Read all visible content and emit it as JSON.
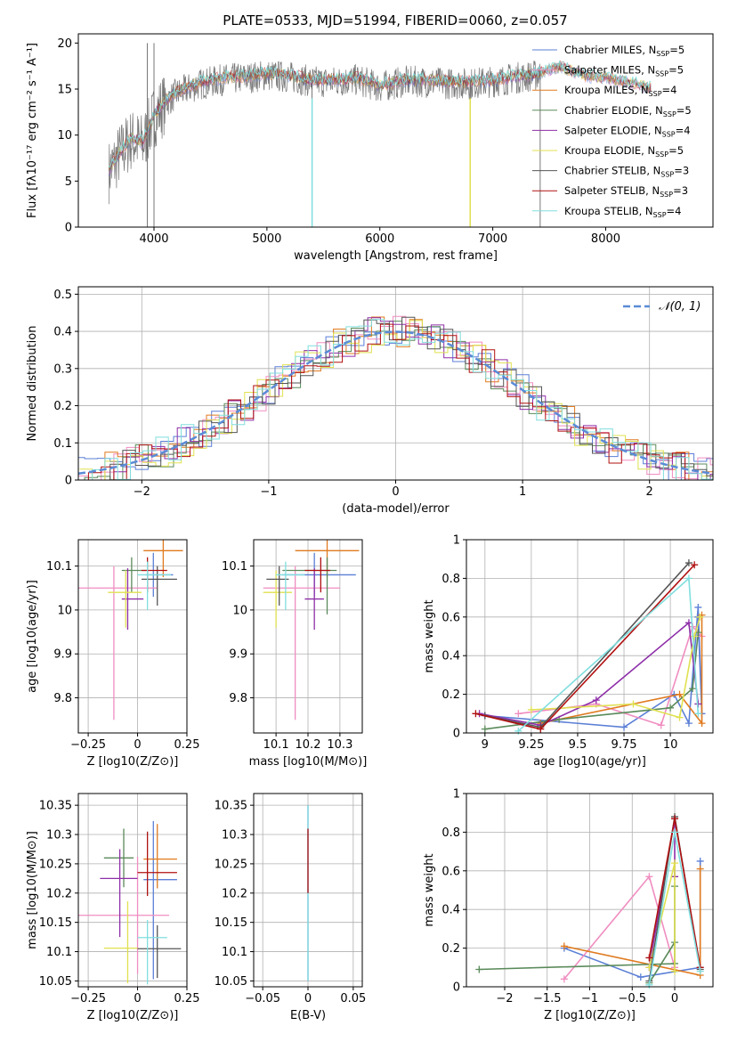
{
  "figure_title": "PLATE=0533, MJD=51994, FIBERID=0060, z=0.057",
  "colors": {
    "Chabrier MILES": "#5b7fd6",
    "Salpeter MILES": "#f08dc0",
    "Kroupa MILES": "#e07a1f",
    "Chabrier ELODIE": "#5a8a5a",
    "Salpeter ELODIE": "#8e2ea8",
    "Kroupa ELODIE": "#e0e050",
    "Chabrier STELIB": "#555555",
    "Salpeter STELIB": "#b01010",
    "Kroupa STELIB": "#80dede"
  },
  "chart_data": [
    {
      "id": "spectrum",
      "type": "line",
      "title": "PLATE=0533, MJD=51994, FIBERID=0060, z=0.057",
      "xlabel": "wavelength [Angstrom, rest frame]",
      "ylabel": "Flux [fλ10⁻¹⁷ erg cm⁻² s⁻¹ A⁻¹]",
      "xlim": [
        3330,
        8950
      ],
      "ylim": [
        0,
        21
      ],
      "xticks": [
        4000,
        5000,
        6000,
        7000,
        8000
      ],
      "yticks": [
        0,
        5,
        10,
        15,
        20
      ],
      "grid": false,
      "legend_position": "right",
      "legend": [
        "Chabrier MILES, NSSP=5",
        "Salpeter MILES, NSSP=5",
        "Kroupa MILES, NSSP=4",
        "Chabrier ELODIE, NSSP=5",
        "Salpeter ELODIE, NSSP=4",
        "Kroupa ELODIE, NSSP=5",
        "Chabrier STELIB, NSSP=3",
        "Salpeter STELIB, NSSP=3",
        "Kroupa STELIB, NSSP=4"
      ],
      "data_trend": {
        "wavelength": [
          3600,
          3700,
          3800,
          3900,
          4000,
          4100,
          4200,
          4400,
          4600,
          4800,
          5000,
          5200,
          5400,
          5600,
          5800,
          6000,
          6200,
          6400,
          6600,
          6800,
          7000,
          7200,
          7400,
          7600,
          7800,
          8000,
          8200,
          8400
        ],
        "flux": [
          6.0,
          8.0,
          9.5,
          9.0,
          12.0,
          13.5,
          14.5,
          15.5,
          16.0,
          16.2,
          16.5,
          16.3,
          15.8,
          15.8,
          16.0,
          15.2,
          15.8,
          15.8,
          15.6,
          15.6,
          15.8,
          16.2,
          16.5,
          17.2,
          16.3,
          16.0,
          15.5,
          15.0
        ]
      }
    },
    {
      "id": "residuals",
      "type": "histogram",
      "xlabel": "(data-model)/error",
      "ylabel": "Normed distribution",
      "xlim": [
        -2.5,
        2.5
      ],
      "ylim": [
        0,
        0.52
      ],
      "xticks": [
        -2,
        -1,
        0,
        1,
        2
      ],
      "yticks": [
        0.0,
        0.1,
        0.2,
        0.3,
        0.4,
        0.5
      ],
      "grid": true,
      "legend": [
        "N(0,1)"
      ],
      "legend_position": "top-right"
    },
    {
      "id": "age_vs_z",
      "type": "errorbar",
      "xlabel": "Z [log10(Z/Z⊙)]",
      "ylabel": "age [log10(age/yr)]",
      "xlim": [
        -0.3,
        0.25
      ],
      "ylim": [
        9.72,
        10.16
      ],
      "xticks": [
        -0.25,
        0.0,
        0.25
      ],
      "yticks": [
        9.8,
        9.9,
        10.0,
        10.1
      ],
      "grid": true,
      "points": [
        {
          "model": "Chabrier MILES",
          "x": 0.08,
          "y": 10.08,
          "xerr": [
            0.04,
            0.1
          ],
          "yerr": [
            0.05,
            0.05
          ]
        },
        {
          "model": "Salpeter MILES",
          "x": -0.12,
          "y": 10.05,
          "xerr": [
            0.23,
            0.22
          ],
          "yerr": [
            0.3,
            0.05
          ]
        },
        {
          "model": "Kroupa MILES",
          "x": 0.13,
          "y": 10.135,
          "xerr": [
            0.1,
            0.1
          ],
          "yerr": [
            0.06,
            0.03
          ]
        },
        {
          "model": "Chabrier ELODIE",
          "x": -0.03,
          "y": 10.09,
          "xerr": [
            0.05,
            0.08
          ],
          "yerr": [
            0.05,
            0.03
          ]
        },
        {
          "model": "Salpeter ELODIE",
          "x": -0.05,
          "y": 10.025,
          "xerr": [
            0.03,
            0.08
          ],
          "yerr": [
            0.07,
            0.07
          ]
        },
        {
          "model": "Kroupa ELODIE",
          "x": -0.06,
          "y": 10.04,
          "xerr": [
            0.09,
            0.08
          ],
          "yerr": [
            0.08,
            0.05
          ]
        },
        {
          "model": "Chabrier STELIB",
          "x": 0.1,
          "y": 10.07,
          "xerr": [
            0.08,
            0.1
          ],
          "yerr": [
            0.06,
            0.03
          ]
        },
        {
          "model": "Salpeter STELIB",
          "x": 0.05,
          "y": 10.09,
          "xerr": [
            0.03,
            0.1
          ],
          "yerr": [
            0.05,
            0.03
          ]
        },
        {
          "model": "Kroupa STELIB",
          "x": 0.05,
          "y": 10.08,
          "xerr": [
            0.05,
            0.12
          ],
          "yerr": [
            0.08,
            0.03
          ]
        }
      ]
    },
    {
      "id": "age_vs_mass",
      "type": "errorbar",
      "xlabel": "mass [log10(M/M⊙)]",
      "ylabel": "",
      "xlim": [
        10.03,
        10.37
      ],
      "ylim": [
        9.72,
        10.16
      ],
      "xticks": [
        10.1,
        10.2,
        10.3
      ],
      "yticks": [
        9.8,
        9.9,
        10.0,
        10.1
      ],
      "grid": true,
      "points": [
        {
          "model": "Chabrier MILES",
          "x": 10.22,
          "y": 10.08,
          "xerr": [
            0.1,
            0.13
          ],
          "yerr": [
            0.05,
            0.05
          ]
        },
        {
          "model": "Salpeter MILES",
          "x": 10.16,
          "y": 10.05,
          "xerr": [
            0.1,
            0.14
          ],
          "yerr": [
            0.3,
            0.05
          ]
        },
        {
          "model": "Kroupa MILES",
          "x": 10.26,
          "y": 10.135,
          "xerr": [
            0.1,
            0.1
          ],
          "yerr": [
            0.06,
            0.03
          ]
        },
        {
          "model": "Chabrier ELODIE",
          "x": 10.26,
          "y": 10.09,
          "xerr": [
            0.14,
            0.03
          ],
          "yerr": [
            0.1,
            0.03
          ]
        },
        {
          "model": "Salpeter ELODIE",
          "x": 10.22,
          "y": 10.025,
          "xerr": [
            0.03,
            0.03
          ],
          "yerr": [
            0.07,
            0.07
          ]
        },
        {
          "model": "Kroupa ELODIE",
          "x": 10.1,
          "y": 10.04,
          "xerr": [
            0.04,
            0.05
          ],
          "yerr": [
            0.08,
            0.05
          ]
        },
        {
          "model": "Chabrier STELIB",
          "x": 10.11,
          "y": 10.07,
          "xerr": [
            0.04,
            0.03
          ],
          "yerr": [
            0.06,
            0.03
          ]
        },
        {
          "model": "Salpeter STELIB",
          "x": 10.24,
          "y": 10.09,
          "xerr": [
            0.05,
            0.03
          ],
          "yerr": [
            0.05,
            0.03
          ]
        },
        {
          "model": "Kroupa STELIB",
          "x": 10.13,
          "y": 10.08,
          "xerr": [
            0.03,
            0.06
          ],
          "yerr": [
            0.08,
            0.03
          ]
        }
      ]
    },
    {
      "id": "weight_vs_age",
      "type": "line",
      "xlabel": "age [log10(age/yr)]",
      "ylabel": "mass weight",
      "xlim": [
        8.9,
        10.23
      ],
      "ylim": [
        0,
        1
      ],
      "xticks": [
        9.0,
        9.25,
        9.5,
        9.75,
        10.0
      ],
      "yticks": [
        0.0,
        0.2,
        0.4,
        0.6,
        0.8,
        1.0
      ],
      "grid": true,
      "series": [
        {
          "model": "Chabrier MILES",
          "x": [
            9.0,
            9.75,
            10.02,
            10.1,
            10.15,
            10.17,
            10.15
          ],
          "y": [
            0.09,
            0.03,
            0.2,
            0.05,
            0.65,
            0.1,
            0.6
          ]
        },
        {
          "model": "Salpeter MILES",
          "x": [
            9.18,
            9.6,
            9.95,
            10.12,
            10.17
          ],
          "y": [
            0.1,
            0.15,
            0.04,
            0.55,
            0.5
          ]
        },
        {
          "model": "Kroupa MILES",
          "x": [
            9.3,
            10.05,
            10.17,
            10.17
          ],
          "y": [
            0.05,
            0.2,
            0.05,
            0.61
          ]
        },
        {
          "model": "Chabrier ELODIE",
          "x": [
            9.0,
            9.4,
            10.0,
            10.12,
            10.15
          ],
          "y": [
            0.02,
            0.07,
            0.13,
            0.23,
            0.52
          ]
        },
        {
          "model": "Salpeter ELODIE",
          "x": [
            8.97,
            9.3,
            9.6,
            10.1,
            10.15
          ],
          "y": [
            0.1,
            0.04,
            0.17,
            0.57,
            0.15
          ]
        },
        {
          "model": "Kroupa ELODIE",
          "x": [
            9.25,
            9.8,
            10.05,
            10.13,
            10.16
          ],
          "y": [
            0.12,
            0.15,
            0.08,
            0.5,
            0.6
          ]
        },
        {
          "model": "Chabrier STELIB",
          "x": [
            9.0,
            9.3,
            10.1
          ],
          "y": [
            0.09,
            0.03,
            0.88
          ]
        },
        {
          "model": "Salpeter STELIB",
          "x": [
            8.95,
            9.3,
            10.13
          ],
          "y": [
            0.1,
            0.02,
            0.87
          ]
        },
        {
          "model": "Kroupa STELIB",
          "x": [
            9.18,
            10.1,
            10.15
          ],
          "y": [
            0.01,
            0.8,
            0.1
          ]
        }
      ]
    },
    {
      "id": "mass_vs_z",
      "type": "errorbar",
      "xlabel": "Z [log10(Z/Z⊙)]",
      "ylabel": "mass [log10(M/M⊙)]",
      "xlim": [
        -0.3,
        0.25
      ],
      "ylim": [
        10.04,
        10.37
      ],
      "xticks": [
        -0.25,
        0.0,
        0.25
      ],
      "yticks": [
        10.05,
        10.1,
        10.15,
        10.2,
        10.25,
        10.3,
        10.35
      ],
      "grid": true,
      "points": [
        {
          "model": "Chabrier MILES",
          "x": 0.08,
          "y": 10.223,
          "xerr": [
            0.05,
            0.12
          ],
          "yerr": [
            0.17,
            0.1
          ]
        },
        {
          "model": "Salpeter MILES",
          "x": 0.0,
          "y": 10.162,
          "xerr": [
            0.3,
            0.16
          ],
          "yerr": [
            0.1,
            0.1
          ]
        },
        {
          "model": "Kroupa MILES",
          "x": 0.1,
          "y": 10.258,
          "xerr": [
            0.07,
            0.1
          ],
          "yerr": [
            0.05,
            0.06
          ]
        },
        {
          "model": "Chabrier ELODIE",
          "x": -0.07,
          "y": 10.26,
          "xerr": [
            0.1,
            0.05
          ],
          "yerr": [
            0.05,
            0.05
          ]
        },
        {
          "model": "Salpeter ELODIE",
          "x": -0.09,
          "y": 10.225,
          "xerr": [
            0.1,
            0.09
          ],
          "yerr": [
            0.1,
            0.05
          ]
        },
        {
          "model": "Kroupa ELODIE",
          "x": -0.05,
          "y": 10.106,
          "xerr": [
            0.12,
            0.05
          ],
          "yerr": [
            0.06,
            0.08
          ]
        },
        {
          "model": "Chabrier STELIB",
          "x": 0.1,
          "y": 10.105,
          "xerr": [
            0.1,
            0.12
          ],
          "yerr": [
            0.05,
            0.04
          ]
        },
        {
          "model": "Salpeter STELIB",
          "x": 0.05,
          "y": 10.235,
          "xerr": [
            0.05,
            0.15
          ],
          "yerr": [
            0.04,
            0.07
          ]
        },
        {
          "model": "Kroupa STELIB",
          "x": 0.05,
          "y": 10.124,
          "xerr": [
            0.05,
            0.1
          ],
          "yerr": [
            0.08,
            0.03
          ]
        }
      ]
    },
    {
      "id": "mass_vs_ebv",
      "type": "errorbar",
      "xlabel": "E(B-V)",
      "ylabel": "",
      "xlim": [
        -0.06,
        0.06
      ],
      "ylim": [
        10.04,
        10.37
      ],
      "xticks": [
        -0.05,
        0.0,
        0.05
      ],
      "yticks": [
        10.05,
        10.1,
        10.15,
        10.2,
        10.25,
        10.3,
        10.35
      ],
      "grid": true,
      "points": [
        {
          "model": "Chabrier MILES",
          "x": 0.0,
          "y": 10.2,
          "xerr": [
            0,
            0
          ],
          "yerr": [
            0.15,
            0.15
          ]
        },
        {
          "model": "Kroupa STELIB",
          "x": 0.0,
          "y": 10.22,
          "xerr": [
            0,
            0
          ],
          "yerr": [
            0.17,
            0.13
          ]
        },
        {
          "model": "Salpeter STELIB",
          "x": 0.0,
          "y": 10.25,
          "xerr": [
            0,
            0
          ],
          "yerr": [
            0.05,
            0.06
          ]
        }
      ]
    },
    {
      "id": "weight_vs_z",
      "type": "line",
      "xlabel": "Z [log10(Z/Z⊙)]",
      "ylabel": "mass weight",
      "xlim": [
        -2.45,
        0.45
      ],
      "ylim": [
        0,
        1
      ],
      "xticks": [
        -2.0,
        -1.5,
        -1.0,
        -0.5,
        0.0
      ],
      "yticks": [
        0.0,
        0.2,
        0.4,
        0.6,
        0.8,
        1.0
      ],
      "grid": true,
      "series": [
        {
          "model": "Chabrier MILES",
          "x": [
            -1.3,
            -0.4,
            0.3,
            0.3
          ],
          "y": [
            0.2,
            0.05,
            0.1,
            0.65
          ]
        },
        {
          "model": "Salpeter MILES",
          "x": [
            -1.3,
            -0.3,
            0.0
          ],
          "y": [
            0.04,
            0.57,
            0.1
          ]
        },
        {
          "model": "Kroupa MILES",
          "x": [
            -1.3,
            0.3,
            0.3
          ],
          "y": [
            0.21,
            0.06,
            0.61
          ]
        },
        {
          "model": "Chabrier ELODIE",
          "x": [
            -2.3,
            0.0,
            0.0,
            0.0,
            -0.3
          ],
          "y": [
            0.09,
            0.12,
            0.52,
            0.23,
            0.02
          ]
        },
        {
          "model": "Salpeter ELODIE",
          "x": [
            -0.3,
            0.0,
            0.0
          ],
          "y": [
            0.1,
            0.87,
            0.57
          ]
        },
        {
          "model": "Kroupa ELODIE",
          "x": [
            -0.3,
            0.0,
            0.0
          ],
          "y": [
            0.1,
            0.64,
            0.08
          ]
        },
        {
          "model": "Chabrier STELIB",
          "x": [
            -0.3,
            0.0,
            0.3
          ],
          "y": [
            0.03,
            0.88,
            0.09
          ]
        },
        {
          "model": "Salpeter STELIB",
          "x": [
            -0.3,
            0.0,
            0.3
          ],
          "y": [
            0.15,
            0.87,
            0.1
          ]
        },
        {
          "model": "Kroupa STELIB",
          "x": [
            -0.3,
            0.0,
            0.3
          ],
          "y": [
            0.01,
            0.8,
            0.08
          ]
        }
      ]
    }
  ]
}
